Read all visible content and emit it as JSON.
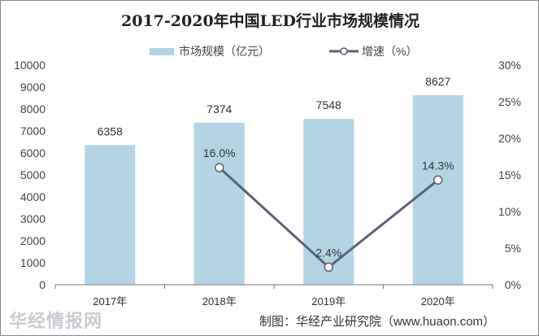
{
  "chart_data": {
    "type": "bar+line",
    "title": "2017-2020年中国LED行业市场规模情况",
    "categories": [
      "2017年",
      "2018年",
      "2019年",
      "2020年"
    ],
    "series": [
      {
        "name": "市场规模（亿元）",
        "type": "bar",
        "axis": "left",
        "values": [
          6358,
          7374,
          7548,
          8627
        ],
        "labels": [
          "6358",
          "7374",
          "7548",
          "8627"
        ],
        "color": "#b4d4e4"
      },
      {
        "name": "增速（%）",
        "type": "line",
        "axis": "right",
        "values": [
          null,
          16.0,
          2.4,
          14.3
        ],
        "labels": [
          "",
          "16.0%",
          "2.4%",
          "14.3%"
        ],
        "color": "#5d6179"
      }
    ],
    "ylim": [
      0,
      10000
    ],
    "yticks": [
      "0",
      "1000",
      "2000",
      "3000",
      "4000",
      "5000",
      "6000",
      "7000",
      "8000",
      "9000",
      "10000"
    ],
    "y2lim": [
      0,
      30
    ],
    "y2ticks": [
      "0%",
      "5%",
      "10%",
      "15%",
      "20%",
      "25%",
      "30%"
    ],
    "grid": false,
    "legend": "top"
  },
  "source": "制图：华经产业研究院（www.huaon.com）",
  "watermark": "华经情报网"
}
